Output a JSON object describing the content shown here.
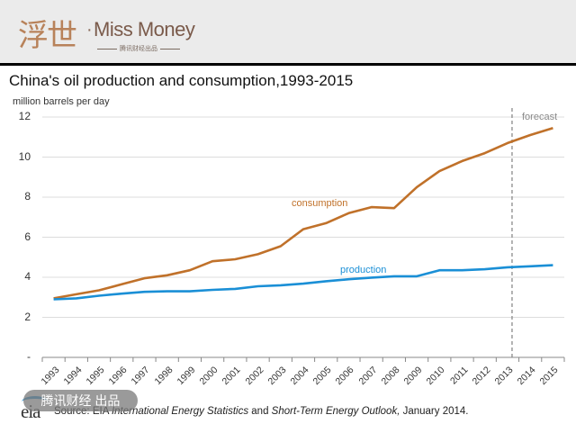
{
  "header": {
    "logo_cn": "浮世",
    "logo_dot": "·",
    "logo_en": "Miss Money",
    "logo_sub": "腾讯财经出品"
  },
  "watermark": "腾讯财经 出品",
  "source": {
    "logo": "eia",
    "prefix": "Source: EIA ",
    "italic1": "International Energy Statistics",
    "mid": " and ",
    "italic2": "Short-Term Energy Outlook,",
    "suffix": " January 2014."
  },
  "chart_data": {
    "type": "line",
    "title": "China's oil production and consumption,1993-2015",
    "ylabel": "million barrels per day",
    "xlabel": "",
    "ylim": [
      0,
      12
    ],
    "yticks": [
      "",
      "2",
      "4",
      "6",
      "8",
      "10",
      "12"
    ],
    "ytick_values": [
      0,
      2,
      4,
      6,
      8,
      10,
      12
    ],
    "grid": true,
    "forecast_label": "forecast",
    "forecast_start_after": "2013",
    "categories": [
      "1993",
      "1994",
      "1995",
      "1996",
      "1997",
      "1998",
      "1999",
      "2000",
      "2001",
      "2002",
      "2003",
      "2004",
      "2005",
      "2006",
      "2007",
      "2008",
      "2009",
      "2010",
      "2011",
      "2012",
      "2013",
      "2014",
      "2015"
    ],
    "series": [
      {
        "name": "consumption",
        "color": "#c0712a",
        "values": [
          2.95,
          3.15,
          3.35,
          3.65,
          3.95,
          4.1,
          4.35,
          4.8,
          4.9,
          5.15,
          5.55,
          6.4,
          6.7,
          7.2,
          7.5,
          7.45,
          8.5,
          9.3,
          9.8,
          10.2,
          10.7,
          11.1,
          11.45
        ]
      },
      {
        "name": "production",
        "color": "#1a8fd6",
        "values": [
          2.9,
          2.95,
          3.08,
          3.18,
          3.27,
          3.3,
          3.3,
          3.37,
          3.42,
          3.55,
          3.6,
          3.68,
          3.8,
          3.9,
          3.98,
          4.05,
          4.05,
          4.35,
          4.35,
          4.4,
          4.5,
          4.55,
          4.6
        ]
      }
    ]
  }
}
